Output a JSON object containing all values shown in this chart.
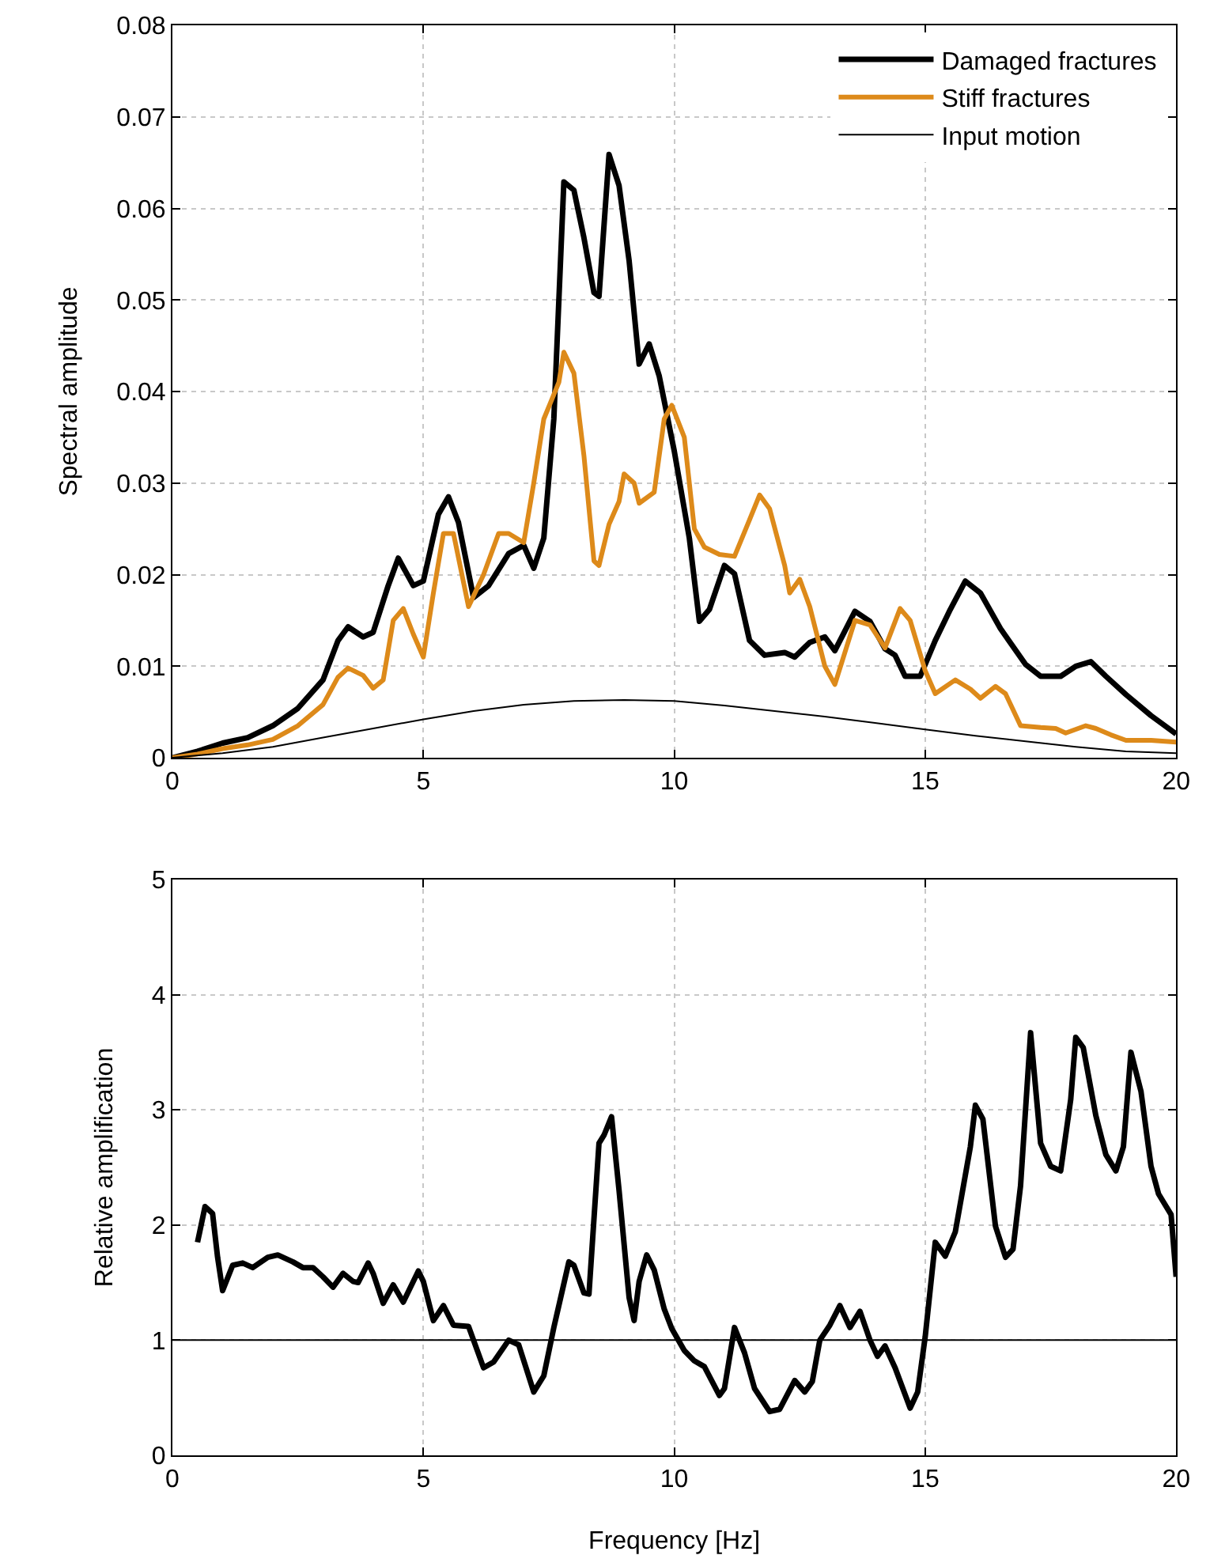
{
  "chart_data": [
    {
      "type": "line",
      "ylabel": "Spectral amplitude",
      "xlim": [
        0,
        20
      ],
      "xticks": [
        0,
        5,
        10,
        15,
        20
      ],
      "ylim": [
        0,
        0.08
      ],
      "yticks": [
        {
          "value": 0,
          "label": "0"
        },
        0.01,
        0.02,
        0.03,
        0.04,
        0.05,
        0.06,
        0.07,
        0.08
      ],
      "grid": true,
      "legend": "top right",
      "line_style": "solid",
      "series": [
        {
          "name": "Damaged fractures",
          "color": "#000000",
          "x": [
            0,
            0.5,
            1.0,
            1.5,
            2.0,
            2.5,
            3.0,
            3.3,
            3.5,
            3.8,
            4.0,
            4.3,
            4.5,
            4.8,
            5.0,
            5.3,
            5.5,
            5.7,
            6.0,
            6.3,
            6.7,
            7.0,
            7.2,
            7.4,
            7.6,
            7.8,
            8.0,
            8.2,
            8.4,
            8.5,
            8.7,
            8.9,
            9.1,
            9.3,
            9.5,
            9.7,
            10.0,
            10.3,
            10.5,
            10.7,
            11.0,
            11.2,
            11.5,
            11.8,
            12.2,
            12.4,
            12.7,
            13.0,
            13.2,
            13.6,
            13.9,
            14.2,
            14.4,
            14.6,
            14.9,
            15.2,
            15.5,
            15.8,
            16.1,
            16.5,
            17.0,
            17.3,
            17.7,
            18.0,
            18.3,
            18.6,
            19.0,
            19.5,
            20
          ],
          "values": [
            0,
            0.0007,
            0.0016,
            0.0022,
            0.0035,
            0.0054,
            0.0085,
            0.0128,
            0.0143,
            0.0132,
            0.0137,
            0.0188,
            0.0218,
            0.0188,
            0.0193,
            0.0266,
            0.0285,
            0.0257,
            0.0175,
            0.0188,
            0.0223,
            0.0232,
            0.0207,
            0.024,
            0.037,
            0.0629,
            0.062,
            0.0568,
            0.0508,
            0.0504,
            0.0659,
            0.0625,
            0.0543,
            0.043,
            0.0452,
            0.0417,
            0.0335,
            0.024,
            0.0149,
            0.0162,
            0.021,
            0.0201,
            0.0128,
            0.0112,
            0.0115,
            0.011,
            0.0126,
            0.0132,
            0.0117,
            0.016,
            0.0149,
            0.0119,
            0.0112,
            0.0089,
            0.0089,
            0.0128,
            0.0162,
            0.0193,
            0.018,
            0.0141,
            0.0102,
            0.0089,
            0.0089,
            0.01,
            0.0105,
            0.0089,
            0.0069,
            0.0046,
            0.0026
          ]
        },
        {
          "name": "Stiff fractures",
          "color": "#dd8a1a",
          "x": [
            0,
            0.5,
            1.0,
            1.5,
            2.0,
            2.5,
            3.0,
            3.3,
            3.5,
            3.8,
            4.0,
            4.2,
            4.4,
            4.6,
            4.8,
            5.0,
            5.2,
            5.4,
            5.6,
            5.9,
            6.2,
            6.5,
            6.7,
            7.0,
            7.2,
            7.4,
            7.7,
            7.8,
            8.0,
            8.2,
            8.4,
            8.5,
            8.7,
            8.9,
            9.0,
            9.2,
            9.3,
            9.6,
            9.8,
            9.95,
            10.2,
            10.4,
            10.6,
            10.9,
            11.2,
            11.5,
            11.7,
            11.9,
            12.2,
            12.3,
            12.5,
            12.7,
            13.0,
            13.2,
            13.4,
            13.6,
            13.9,
            14.2,
            14.5,
            14.7,
            15.0,
            15.2,
            15.6,
            15.9,
            16.1,
            16.4,
            16.6,
            16.9,
            17.3,
            17.6,
            17.8,
            18.2,
            18.4,
            18.7,
            19.0,
            19.5,
            20
          ],
          "values": [
            0,
            0.0004,
            0.001,
            0.0014,
            0.002,
            0.0035,
            0.0058,
            0.0088,
            0.0098,
            0.009,
            0.0076,
            0.0085,
            0.015,
            0.0163,
            0.0135,
            0.011,
            0.018,
            0.0245,
            0.0245,
            0.0165,
            0.02,
            0.0245,
            0.0245,
            0.0235,
            0.03,
            0.037,
            0.041,
            0.0443,
            0.042,
            0.033,
            0.0215,
            0.021,
            0.0255,
            0.028,
            0.031,
            0.03,
            0.0278,
            0.029,
            0.037,
            0.0385,
            0.035,
            0.025,
            0.023,
            0.0222,
            0.022,
            0.026,
            0.0287,
            0.0272,
            0.021,
            0.018,
            0.0195,
            0.0165,
            0.01,
            0.008,
            0.0115,
            0.015,
            0.0145,
            0.012,
            0.0163,
            0.015,
            0.0095,
            0.007,
            0.0085,
            0.0075,
            0.0065,
            0.0078,
            0.007,
            0.0035,
            0.0033,
            0.0032,
            0.0027,
            0.0035,
            0.0032,
            0.0025,
            0.0019,
            0.0019,
            0.0017
          ]
        },
        {
          "name": "Input motion",
          "color": "#000000",
          "x": [
            0,
            1,
            2,
            3,
            4,
            5,
            6,
            7,
            8,
            9,
            10,
            11,
            12,
            13,
            14,
            15,
            16,
            17,
            18,
            19,
            20
          ],
          "values": [
            0,
            0.0005,
            0.0012,
            0.0022,
            0.0032,
            0.0042,
            0.0051,
            0.0058,
            0.0062,
            0.0063,
            0.0062,
            0.0057,
            0.0051,
            0.0045,
            0.0038,
            0.0031,
            0.0024,
            0.0018,
            0.0012,
            0.0007,
            0.0005
          ]
        }
      ]
    },
    {
      "type": "line",
      "xlabel": "Frequency [Hz]",
      "ylabel": "Relative amplification",
      "xlim": [
        0,
        20
      ],
      "xticks": [
        0,
        5,
        10,
        15,
        20
      ],
      "ylim": [
        0,
        5
      ],
      "yticks": [
        0,
        1,
        2,
        3,
        4,
        5
      ],
      "grid": true,
      "line_style": "solid",
      "ref_lines": [
        {
          "axis": "y",
          "value": 1,
          "color": "#000000"
        }
      ],
      "series": [
        {
          "color": "#000000",
          "x": [
            0.5,
            0.65,
            0.8,
            0.9,
            1.0,
            1.2,
            1.4,
            1.6,
            1.9,
            2.1,
            2.4,
            2.6,
            2.8,
            3.0,
            3.2,
            3.4,
            3.6,
            3.7,
            3.9,
            4.0,
            4.2,
            4.4,
            4.6,
            4.9,
            5.0,
            5.2,
            5.4,
            5.6,
            5.9,
            6.2,
            6.4,
            6.7,
            6.9,
            7.2,
            7.4,
            7.6,
            7.9,
            8.0,
            8.2,
            8.3,
            8.5,
            8.6,
            8.75,
            8.9,
            9.1,
            9.2,
            9.3,
            9.45,
            9.6,
            9.8,
            9.95,
            10.2,
            10.4,
            10.6,
            10.9,
            11.0,
            11.2,
            11.4,
            11.6,
            11.9,
            12.1,
            12.4,
            12.6,
            12.75,
            12.9,
            13.1,
            13.3,
            13.5,
            13.7,
            13.9,
            14.05,
            14.2,
            14.4,
            14.7,
            14.85,
            15.0,
            15.2,
            15.4,
            15.6,
            15.9,
            16.0,
            16.15,
            16.4,
            16.6,
            16.75,
            16.9,
            17.1,
            17.3,
            17.5,
            17.7,
            17.9,
            18.0,
            18.15,
            18.4,
            18.6,
            18.8,
            18.95,
            19.1,
            19.3,
            19.5,
            19.65,
            19.9,
            20
          ],
          "values": [
            1.85,
            2.16,
            2.1,
            1.72,
            1.43,
            1.65,
            1.67,
            1.63,
            1.72,
            1.74,
            1.68,
            1.63,
            1.63,
            1.55,
            1.46,
            1.58,
            1.51,
            1.5,
            1.67,
            1.58,
            1.32,
            1.48,
            1.33,
            1.6,
            1.51,
            1.17,
            1.3,
            1.13,
            1.12,
            0.76,
            0.81,
            1.0,
            0.96,
            0.55,
            0.69,
            1.11,
            1.68,
            1.65,
            1.41,
            1.4,
            2.71,
            2.78,
            2.94,
            2.3,
            1.37,
            1.17,
            1.51,
            1.74,
            1.61,
            1.27,
            1.1,
            0.91,
            0.82,
            0.77,
            0.52,
            0.58,
            1.11,
            0.89,
            0.58,
            0.38,
            0.4,
            0.65,
            0.55,
            0.64,
            1.0,
            1.13,
            1.3,
            1.11,
            1.25,
            1.0,
            0.86,
            0.95,
            0.76,
            0.41,
            0.55,
            1.03,
            1.85,
            1.73,
            1.94,
            2.68,
            3.04,
            2.92,
            1.99,
            1.72,
            1.79,
            2.34,
            3.67,
            2.71,
            2.51,
            2.47,
            3.09,
            3.63,
            3.54,
            2.95,
            2.61,
            2.47,
            2.68,
            3.5,
            3.16,
            2.51,
            2.27,
            2.09,
            1.55
          ]
        }
      ]
    }
  ]
}
